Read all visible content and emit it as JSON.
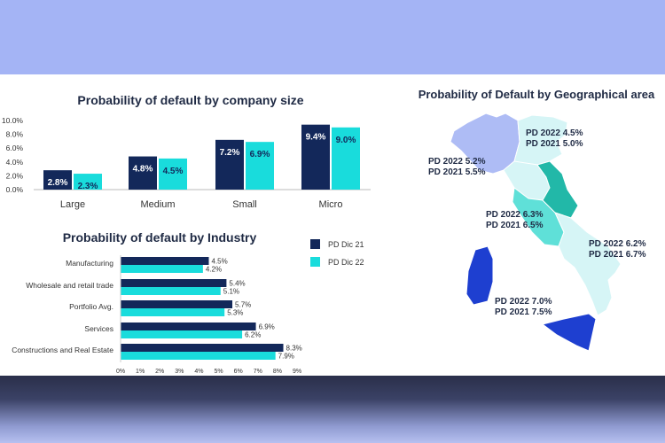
{
  "colors": {
    "dic21": "#13285a",
    "dic22": "#19dcdc",
    "map_light": "#d6f5f6",
    "map_mid": "#5fe0d8",
    "map_dark": "#22b8a8",
    "map_lav": "#aebcf5",
    "map_blue": "#1e3fd0"
  },
  "chart_data": [
    {
      "type": "bar",
      "title": "Probability of default by company size",
      "categories": [
        "Large",
        "Medium",
        "Small",
        "Micro"
      ],
      "series": [
        {
          "name": "PD Dic 21",
          "values": [
            2.8,
            4.8,
            7.2,
            9.4
          ],
          "labels": [
            "2.8%",
            "4.8%",
            "7.2%",
            "9.4%"
          ]
        },
        {
          "name": "PD Dic 22",
          "values": [
            2.3,
            4.5,
            6.9,
            9.0
          ],
          "labels": [
            "2.3%",
            "4.5%",
            "6.9%",
            "9.0%"
          ]
        }
      ],
      "ylim": [
        0,
        10
      ],
      "yticks": [
        "0.0%",
        "2.0%",
        "4.0%",
        "6.0%",
        "8.0%",
        "10.0%"
      ],
      "legend": "shared"
    },
    {
      "type": "bar",
      "orientation": "horizontal",
      "title": "Probability of default by Industry",
      "categories": [
        "Manufacturing",
        "Wholesale and retail trade",
        "Portfolio Avg.",
        "Services",
        "Constructions and Real Estate"
      ],
      "series": [
        {
          "name": "PD Dic 21",
          "values": [
            4.5,
            5.4,
            5.7,
            6.9,
            8.3
          ],
          "labels": [
            "4.5%",
            "5.4%",
            "5.7%",
            "6.9%",
            "8.3%"
          ]
        },
        {
          "name": "PD Dic 22",
          "values": [
            4.2,
            5.1,
            5.3,
            6.2,
            7.9
          ],
          "labels": [
            "4.2%",
            "5.1%",
            "5.3%",
            "6.2%",
            "7.9%"
          ]
        }
      ],
      "xlim": [
        0,
        9
      ],
      "xticks": [
        "0%",
        "1%",
        "2%",
        "3%",
        "4%",
        "5%",
        "6%",
        "7%",
        "8%",
        "9%"
      ],
      "legend": "right",
      "legend_entries": [
        "PD Dic 21",
        "PD Dic 22"
      ]
    }
  ],
  "map": {
    "title": "Probability of Default by Geographical area",
    "areas": [
      {
        "name": "north-east",
        "pd2022": "PD 2022 4.5%",
        "pd2021": "PD 2021 5.0%"
      },
      {
        "name": "north-west",
        "pd2022": "PD 2022 5.2%",
        "pd2021": "PD 2021 5.5%"
      },
      {
        "name": "center",
        "pd2022": "PD 2022 6.3%",
        "pd2021": "PD 2021 6.5%"
      },
      {
        "name": "south",
        "pd2022": "PD 2022 6.2%",
        "pd2021": "PD 2021 6.7%"
      },
      {
        "name": "islands",
        "pd2022": "PD 2022 7.0%",
        "pd2021": "PD 2021 7.5%"
      }
    ]
  }
}
